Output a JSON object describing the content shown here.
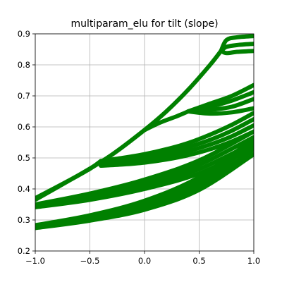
{
  "chart_data": {
    "type": "line",
    "title": "multiparam_elu for tilt (slope)",
    "xlabel": "",
    "ylabel": "",
    "xlim": [
      -1.0,
      1.0
    ],
    "ylim": [
      0.2,
      0.9
    ],
    "xticks": [
      -1.0,
      -0.5,
      0.0,
      0.5,
      1.0
    ],
    "xtick_labels": [
      "−1.0",
      "−0.5",
      "0.0",
      "0.5",
      "1.0"
    ],
    "yticks": [
      0.2,
      0.3,
      0.4,
      0.5,
      0.6,
      0.7,
      0.8,
      0.9
    ],
    "ytick_labels": [
      "0.2",
      "0.3",
      "0.4",
      "0.5",
      "0.6",
      "0.7",
      "0.8",
      "0.9"
    ],
    "grid": true,
    "legend": "none",
    "line_color": "#008000",
    "series": [
      {
        "x": [
          -1.0,
          -0.6,
          -0.3,
          0.0,
          0.2,
          0.4,
          0.6,
          0.7
        ],
        "y": [
          0.37,
          0.445,
          0.51,
          0.59,
          0.65,
          0.72,
          0.8,
          0.845
        ]
      },
      {
        "x": [
          0.7,
          0.75,
          0.85,
          1.0
        ],
        "y": [
          0.845,
          0.88,
          0.889,
          0.893
        ]
      },
      {
        "x": [
          0.7,
          0.75,
          0.85,
          1.0
        ],
        "y": [
          0.845,
          0.858,
          0.864,
          0.868
        ]
      },
      {
        "x": [
          0.7,
          0.75,
          0.85,
          1.0
        ],
        "y": [
          0.845,
          0.838,
          0.842,
          0.845
        ]
      },
      {
        "x": [
          0.0,
          0.15,
          0.3,
          0.4
        ],
        "y": [
          0.59,
          0.615,
          0.635,
          0.65
        ]
      },
      {
        "x": [
          0.4,
          0.6,
          0.8,
          1.0
        ],
        "y": [
          0.65,
          0.675,
          0.7,
          0.735
        ]
      },
      {
        "x": [
          0.4,
          0.6,
          0.8,
          1.0
        ],
        "y": [
          0.65,
          0.665,
          0.685,
          0.712
        ]
      },
      {
        "x": [
          0.4,
          0.6,
          0.8,
          1.0
        ],
        "y": [
          0.65,
          0.655,
          0.665,
          0.69
        ]
      },
      {
        "x": [
          0.4,
          0.6,
          0.8,
          1.0
        ],
        "y": [
          0.65,
          0.643,
          0.647,
          0.66
        ]
      },
      {
        "x": [
          -1.0,
          -0.7,
          -0.5,
          -0.4
        ],
        "y": [
          0.365,
          0.425,
          0.465,
          0.49
        ]
      },
      {
        "x": [
          -0.4,
          -0.2,
          0.0,
          0.2,
          0.4,
          0.6,
          0.8,
          1.0
        ],
        "y": [
          0.49,
          0.5,
          0.512,
          0.528,
          0.548,
          0.575,
          0.607,
          0.645
        ]
      },
      {
        "x": [
          -0.4,
          -0.2,
          0.0,
          0.2,
          0.4,
          0.6,
          0.8,
          1.0
        ],
        "y": [
          0.485,
          0.493,
          0.503,
          0.517,
          0.535,
          0.558,
          0.588,
          0.625
        ]
      },
      {
        "x": [
          -0.4,
          -0.2,
          0.0,
          0.2,
          0.4,
          0.6,
          0.8,
          1.0
        ],
        "y": [
          0.48,
          0.486,
          0.494,
          0.506,
          0.522,
          0.543,
          0.57,
          0.605
        ]
      },
      {
        "x": [
          -0.4,
          -0.2,
          0.0,
          0.2,
          0.4,
          0.6,
          0.8,
          1.0
        ],
        "y": [
          0.475,
          0.479,
          0.485,
          0.495,
          0.509,
          0.528,
          0.553,
          0.585
        ]
      },
      {
        "x": [
          -1.0,
          -0.5,
          0.0,
          0.5,
          1.0
        ],
        "y": [
          0.35,
          0.385,
          0.43,
          0.492,
          0.585
        ]
      },
      {
        "x": [
          -1.0,
          -0.5,
          0.0,
          0.5,
          1.0
        ],
        "y": [
          0.347,
          0.378,
          0.42,
          0.478,
          0.567
        ]
      },
      {
        "x": [
          -1.0,
          -0.5,
          0.0,
          0.5,
          1.0
        ],
        "y": [
          0.344,
          0.371,
          0.41,
          0.464,
          0.549
        ]
      },
      {
        "x": [
          -1.0,
          -0.5,
          0.0,
          0.5,
          1.0
        ],
        "y": [
          0.341,
          0.365,
          0.4,
          0.45,
          0.532
        ]
      },
      {
        "x": [
          -1.0,
          -0.5,
          0.0,
          0.5,
          1.0
        ],
        "y": [
          0.283,
          0.315,
          0.362,
          0.438,
          0.562
        ]
      },
      {
        "x": [
          -1.0,
          -0.5,
          0.0,
          0.5,
          1.0
        ],
        "y": [
          0.28,
          0.309,
          0.352,
          0.424,
          0.545
        ]
      },
      {
        "x": [
          -1.0,
          -0.5,
          0.0,
          0.5,
          1.0
        ],
        "y": [
          0.277,
          0.303,
          0.342,
          0.41,
          0.528
        ]
      },
      {
        "x": [
          -1.0,
          -0.5,
          0.0,
          0.5,
          1.0
        ],
        "y": [
          0.274,
          0.298,
          0.333,
          0.397,
          0.512
        ]
      }
    ]
  }
}
